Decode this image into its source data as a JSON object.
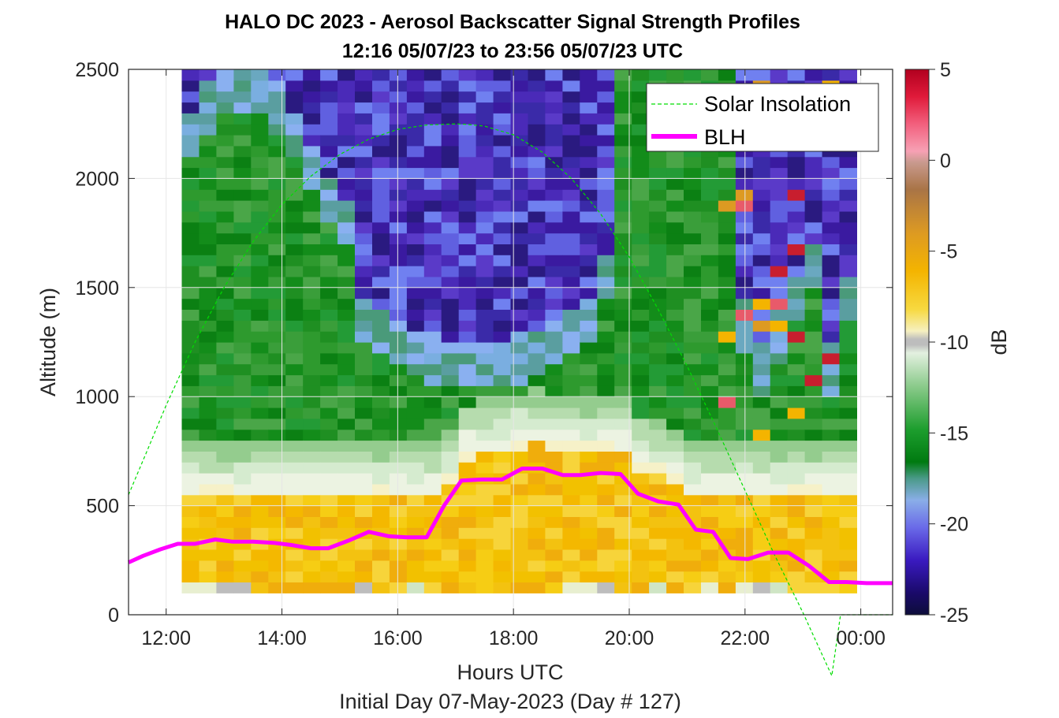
{
  "chart_data": {
    "type": "heatmap",
    "title": "HALO DC 2023 - Aerosol Backscatter Signal Strength Profiles",
    "subtitle": "12:16 05/07/23 to 23:56 05/07/23  UTC",
    "xlabel": "Hours UTC",
    "xlabel2": "Initial Day 07-May-2023 (Day # 127)",
    "ylabel": "Altitude (m)",
    "colorbar_label": "dB",
    "x_range_hours": [
      11.35,
      24.55
    ],
    "ylim": [
      0,
      2500
    ],
    "clim": [
      -25,
      5
    ],
    "x_ticks": [
      12,
      14,
      16,
      18,
      20,
      22,
      24
    ],
    "x_tick_labels": [
      "12:00",
      "14:00",
      "16:00",
      "18:00",
      "20:00",
      "22:00",
      "00:00"
    ],
    "y_ticks": [
      0,
      500,
      1000,
      1500,
      2000,
      2500
    ],
    "y_tick_labels": [
      "0",
      "500",
      "1000",
      "1500",
      "2000",
      "2500"
    ],
    "colorbar_ticks": [
      5,
      0,
      -5,
      -10,
      -15,
      -20,
      -25
    ],
    "colorbar_tick_labels": [
      "5",
      "0",
      "-5",
      "-10",
      "-15",
      "-20",
      "-25"
    ],
    "heatmap": {
      "time_start_hours": 12.27,
      "time_end_hours": 23.93,
      "altitude_start_m": 100,
      "altitude_end_m": 2500,
      "bin_height_m": 50,
      "profiles": [
        {
          "t": 12.3,
          "cloud_top": 9999,
          "cloud_base": 9999,
          "blh": 320
        },
        {
          "t": 12.6,
          "cloud_top": 9999,
          "cloud_base": 9999,
          "blh": 320
        },
        {
          "t": 12.9,
          "cloud_top": 9999,
          "cloud_base": 9999,
          "blh": 340
        },
        {
          "t": 13.2,
          "cloud_top": 9999,
          "cloud_base": 9999,
          "blh": 330
        },
        {
          "t": 13.5,
          "cloud_top": 9999,
          "cloud_base": 9999,
          "blh": 330
        },
        {
          "t": 13.8,
          "cloud_top": 9999,
          "cloud_base": 9999,
          "blh": 320
        },
        {
          "t": 14.1,
          "cloud_top": 9999,
          "cloud_base": 9999,
          "blh": 310
        },
        {
          "t": 14.4,
          "cloud_top": 9999,
          "cloud_base": 9999,
          "blh": 300
        },
        {
          "t": 14.7,
          "cloud_top": 9999,
          "cloud_base": 9999,
          "blh": 300
        },
        {
          "t": 15.0,
          "cloud_top": 9999,
          "cloud_base": 9999,
          "blh": 330
        },
        {
          "t": 15.3,
          "cloud_top": 9999,
          "cloud_base": 9999,
          "blh": 360
        },
        {
          "t": 15.6,
          "cloud_top": 9999,
          "cloud_base": 9999,
          "blh": 375
        },
        {
          "t": 15.9,
          "cloud_top": 9999,
          "cloud_base": 9999,
          "blh": 360
        },
        {
          "t": 16.2,
          "cloud_top": 9999,
          "cloud_base": 9999,
          "blh": 355
        },
        {
          "t": 16.5,
          "cloud_top": 9999,
          "cloud_base": 9999,
          "blh": 355
        },
        {
          "t": 16.8,
          "cloud_top": 9999,
          "cloud_base": 9999,
          "blh": 500
        },
        {
          "t": 17.1,
          "cloud_top": 9999,
          "cloud_base": 9999,
          "blh": 610
        },
        {
          "t": 17.4,
          "cloud_top": 9999,
          "cloud_base": 9999,
          "blh": 620
        },
        {
          "t": 17.7,
          "cloud_top": 9999,
          "cloud_base": 9999,
          "blh": 620
        },
        {
          "t": 18.0,
          "cloud_top": 9999,
          "cloud_base": 9999,
          "blh": 660
        },
        {
          "t": 18.3,
          "cloud_top": 9999,
          "cloud_base": 9999,
          "blh": 665
        },
        {
          "t": 18.6,
          "cloud_top": 9999,
          "cloud_base": 9999,
          "blh": 660
        },
        {
          "t": 18.9,
          "cloud_top": 9999,
          "cloud_base": 9999,
          "blh": 640
        },
        {
          "t": 19.2,
          "cloud_top": 9999,
          "cloud_base": 9999,
          "blh": 640
        },
        {
          "t": 19.5,
          "cloud_top": 9999,
          "cloud_base": 9999,
          "blh": 650
        },
        {
          "t": 19.8,
          "cloud_top": 9999,
          "cloud_base": 9999,
          "blh": 640
        },
        {
          "t": 20.1,
          "cloud_top": 9999,
          "cloud_base": 9999,
          "blh": 555
        },
        {
          "t": 20.4,
          "cloud_top": 9999,
          "cloud_base": 9999,
          "blh": 520
        },
        {
          "t": 20.7,
          "cloud_top": 9999,
          "cloud_base": 9999,
          "blh": 505
        },
        {
          "t": 21.0,
          "cloud_top": 9999,
          "cloud_base": 9999,
          "blh": 390
        },
        {
          "t": 21.3,
          "cloud_top": 9999,
          "cloud_base": 9999,
          "blh": 380
        },
        {
          "t": 21.6,
          "cloud_top": 9999,
          "cloud_base": 9999,
          "blh": 260
        },
        {
          "t": 21.9,
          "cloud_top": 9999,
          "cloud_base": 9999,
          "blh": 255
        },
        {
          "t": 22.2,
          "cloud_top": 9999,
          "cloud_base": 9999,
          "blh": 280
        },
        {
          "t": 22.5,
          "cloud_top": 9999,
          "cloud_base": 9999,
          "blh": 280
        },
        {
          "t": 22.8,
          "cloud_top": 9999,
          "cloud_base": 9999,
          "blh": 220
        },
        {
          "t": 23.1,
          "cloud_top": 9999,
          "cloud_base": 9999,
          "blh": 150
        },
        {
          "t": 23.4,
          "cloud_top": 9999,
          "cloud_base": 9999,
          "blh": 150
        },
        {
          "t": 23.7,
          "cloud_top": 9999,
          "cloud_base": 9999,
          "blh": 145
        }
      ]
    },
    "series": [
      {
        "name": "Solar Insolation",
        "style": "dashed",
        "color": "#00dd00",
        "x": [
          11.35,
          11.7,
          12.0,
          12.5,
          13.0,
          13.5,
          14.0,
          14.5,
          15.0,
          15.5,
          16.0,
          16.5,
          17.0,
          17.2,
          17.5,
          18.0,
          18.5,
          19.0,
          19.5,
          20.0,
          20.5,
          21.0,
          21.5,
          22.0,
          22.5,
          23.0,
          23.5,
          23.65,
          24.0,
          24.55
        ],
        "y": [
          550,
          770,
          960,
          1250,
          1500,
          1710,
          1880,
          2010,
          2110,
          2180,
          2225,
          2245,
          2250,
          2248,
          2240,
          2200,
          2120,
          2000,
          1840,
          1640,
          1400,
          1140,
          860,
          570,
          280,
          10,
          -280,
          0,
          0,
          0
        ]
      },
      {
        "name": "BLH",
        "style": "solid",
        "color": "#ff00ff",
        "x": [
          11.35,
          11.6,
          11.9,
          12.2,
          12.5,
          12.85,
          13.15,
          13.5,
          13.85,
          14.15,
          14.5,
          14.8,
          15.15,
          15.5,
          15.85,
          16.15,
          16.5,
          16.8,
          17.1,
          17.45,
          17.8,
          18.15,
          18.5,
          18.85,
          19.15,
          19.5,
          19.85,
          20.15,
          20.5,
          20.85,
          21.15,
          21.45,
          21.75,
          22.05,
          22.4,
          22.75,
          23.1,
          23.45,
          23.75,
          24.1,
          24.55
        ],
        "y": [
          240,
          270,
          300,
          325,
          325,
          345,
          335,
          335,
          330,
          320,
          305,
          305,
          340,
          380,
          360,
          355,
          355,
          500,
          615,
          620,
          620,
          670,
          670,
          640,
          640,
          650,
          645,
          555,
          520,
          505,
          390,
          380,
          260,
          255,
          285,
          285,
          225,
          150,
          150,
          145,
          145
        ]
      }
    ],
    "legend": {
      "location": "top-right",
      "entries": [
        "Solar Insolation",
        "BLH"
      ]
    }
  }
}
